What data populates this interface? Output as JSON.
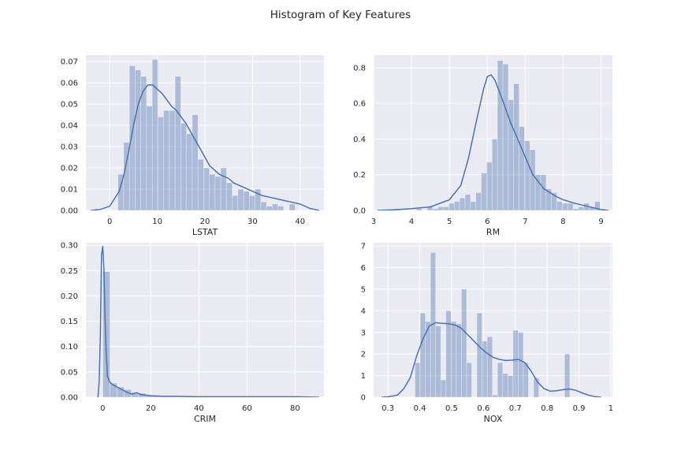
{
  "figure": {
    "title": "Histogram of Key Features"
  },
  "style": {
    "plot_bg": "#eaeaf2",
    "grid_color": "#ffffff",
    "bar_color": "#4c72b0",
    "bar_alpha": 0.4,
    "kde_color": "#4c72b0"
  },
  "chart_data": [
    {
      "type": "bar",
      "subtype": "histogram_with_kde",
      "xlabel": "LSTAT",
      "xlim": [
        -5,
        45
      ],
      "ylim": [
        0,
        0.073
      ],
      "xticks": [
        0,
        10,
        20,
        30,
        40
      ],
      "yticks": [
        0.0,
        0.01,
        0.02,
        0.03,
        0.04,
        0.05,
        0.06,
        0.07
      ],
      "ytick_labels": [
        "0.00",
        "0.01",
        "0.02",
        "0.03",
        "0.04",
        "0.05",
        "0.06",
        "0.07"
      ],
      "grid": true,
      "bin_start": 1.73,
      "bin_width": 1.2,
      "values": [
        0.017,
        0.032,
        0.068,
        0.066,
        0.063,
        0.049,
        0.071,
        0.044,
        0.047,
        0.047,
        0.063,
        0.041,
        0.036,
        0.045,
        0.024,
        0.02,
        0.017,
        0.016,
        0.02,
        0.013,
        0.007,
        0.01,
        0.009,
        0.007,
        0.01,
        0.004,
        0.002,
        0.003,
        0.002,
        0.0,
        0.003
      ],
      "kde": {
        "x": [
          -4,
          -2,
          0,
          2,
          3,
          4,
          5,
          6,
          7,
          8,
          9,
          10,
          11,
          12,
          13,
          14,
          15,
          16,
          17,
          18,
          19,
          20,
          21,
          22,
          23,
          24,
          25,
          26,
          28,
          30,
          32,
          34,
          36,
          38,
          40,
          42,
          44
        ],
        "y": [
          0.0,
          0.0005,
          0.002,
          0.009,
          0.017,
          0.028,
          0.04,
          0.05,
          0.056,
          0.059,
          0.059,
          0.057,
          0.055,
          0.052,
          0.049,
          0.047,
          0.044,
          0.041,
          0.037,
          0.033,
          0.029,
          0.025,
          0.021,
          0.019,
          0.017,
          0.016,
          0.015,
          0.013,
          0.011,
          0.009,
          0.007,
          0.006,
          0.005,
          0.004,
          0.003,
          0.001,
          0.0
        ]
      }
    },
    {
      "type": "bar",
      "subtype": "histogram_with_kde",
      "xlabel": "RM",
      "xlim": [
        3.0,
        9.3
      ],
      "ylim": [
        0,
        0.87
      ],
      "xticks": [
        3,
        4,
        5,
        6,
        7,
        8,
        9
      ],
      "yticks": [
        0.0,
        0.2,
        0.4,
        0.6,
        0.8
      ],
      "ytick_labels": [
        "0.0",
        "0.2",
        "0.4",
        "0.6",
        "0.8"
      ],
      "grid": true,
      "bin_start": 3.56,
      "bin_width": 0.1425,
      "values": [
        0.01,
        0.0,
        0.0,
        0.0,
        0.01,
        0.0,
        0.02,
        0.01,
        0.02,
        0.02,
        0.04,
        0.05,
        0.07,
        0.09,
        0.05,
        0.1,
        0.21,
        0.27,
        0.4,
        0.84,
        0.82,
        0.62,
        0.71,
        0.47,
        0.39,
        0.34,
        0.2,
        0.2,
        0.12,
        0.1,
        0.05,
        0.04,
        0.04,
        0.01,
        0.02,
        0.04,
        0.02,
        0.05
      ],
      "kde": {
        "x": [
          3.1,
          3.5,
          4.0,
          4.5,
          5.0,
          5.3,
          5.5,
          5.7,
          5.9,
          6.0,
          6.1,
          6.2,
          6.4,
          6.6,
          6.8,
          7.0,
          7.2,
          7.5,
          7.8,
          8.0,
          8.3,
          8.6,
          9.0,
          9.2
        ],
        "y": [
          0.0,
          0.003,
          0.01,
          0.02,
          0.06,
          0.14,
          0.29,
          0.49,
          0.68,
          0.75,
          0.76,
          0.73,
          0.62,
          0.5,
          0.4,
          0.3,
          0.2,
          0.12,
          0.08,
          0.06,
          0.04,
          0.025,
          0.005,
          0.0
        ]
      }
    },
    {
      "type": "bar",
      "subtype": "histogram_with_kde",
      "xlabel": "CRIM",
      "xlim": [
        -7,
        92
      ],
      "ylim": [
        0,
        0.305
      ],
      "xticks": [
        0,
        20,
        40,
        60,
        80
      ],
      "yticks": [
        0.0,
        0.05,
        0.1,
        0.15,
        0.2,
        0.25,
        0.3
      ],
      "ytick_labels": [
        "0.00",
        "0.05",
        "0.10",
        "0.15",
        "0.20",
        "0.25",
        "0.30"
      ],
      "grid": true,
      "bin_start": 0.0,
      "bin_width": 2.97,
      "values": [
        0.248,
        0.028,
        0.02,
        0.015,
        0.01,
        0.008,
        0.003,
        0.002,
        0.003,
        0.002,
        0.001,
        0.001,
        0.001,
        0.001,
        0.001,
        0.001,
        0.001,
        0.0,
        0.001,
        0.0,
        0.001,
        0.0,
        0.0,
        0.0,
        0.001,
        0.0,
        0.0,
        0.0,
        0.0,
        0.001
      ],
      "kde": {
        "x": [
          -2,
          -1.5,
          -1,
          -0.5,
          0,
          0.5,
          1,
          1.5,
          2,
          3,
          4,
          6,
          8,
          10,
          12,
          14,
          16,
          18,
          20,
          25,
          30,
          40,
          50,
          60,
          70,
          80,
          90
        ],
        "y": [
          0.0,
          0.03,
          0.12,
          0.28,
          0.298,
          0.25,
          0.15,
          0.08,
          0.04,
          0.03,
          0.025,
          0.02,
          0.015,
          0.01,
          0.006,
          0.009,
          0.005,
          0.004,
          0.003,
          0.002,
          0.002,
          0.001,
          0.001,
          0.001,
          0.001,
          0.001,
          0.0
        ]
      }
    },
    {
      "type": "bar",
      "subtype": "histogram_with_kde",
      "xlabel": "NOX",
      "xlim": [
        0.255,
        1.005
      ],
      "ylim": [
        0,
        7.15
      ],
      "xticks": [
        0.3,
        0.4,
        0.5,
        0.6,
        0.7,
        0.8,
        0.9,
        1.0
      ],
      "ytick_labels": [
        "0",
        "1",
        "2",
        "3",
        "4",
        "5",
        "6",
        "7"
      ],
      "yticks": [
        0,
        1,
        2,
        3,
        4,
        5,
        6,
        7
      ],
      "grid": true,
      "bin_start": 0.385,
      "bin_width": 0.0162,
      "values": [
        1.6,
        3.9,
        3.5,
        6.7,
        3.3,
        0.8,
        4.0,
        3.5,
        3.4,
        5.0,
        1.6,
        0.0,
        3.9,
        2.6,
        2.8,
        0.1,
        1.6,
        1.1,
        1.0,
        3.1,
        3.0,
        1.6,
        0.0,
        0.9,
        0.0,
        0.0,
        0.0,
        0.0,
        0.0,
        2.0
      ],
      "kde": {
        "x": [
          0.28,
          0.3,
          0.33,
          0.35,
          0.37,
          0.39,
          0.41,
          0.43,
          0.45,
          0.47,
          0.49,
          0.51,
          0.53,
          0.55,
          0.57,
          0.59,
          0.61,
          0.63,
          0.65,
          0.67,
          0.69,
          0.71,
          0.73,
          0.75,
          0.77,
          0.79,
          0.81,
          0.83,
          0.85,
          0.87,
          0.89,
          0.91,
          0.93,
          0.95,
          0.97
        ],
        "y": [
          0.0,
          0.02,
          0.1,
          0.4,
          0.9,
          1.9,
          2.7,
          3.3,
          3.45,
          3.42,
          3.4,
          3.35,
          3.2,
          2.9,
          2.6,
          2.3,
          2.05,
          1.85,
          1.75,
          1.7,
          1.72,
          1.75,
          1.6,
          1.2,
          0.7,
          0.4,
          0.28,
          0.3,
          0.35,
          0.38,
          0.32,
          0.2,
          0.1,
          0.03,
          0.0
        ]
      }
    }
  ]
}
